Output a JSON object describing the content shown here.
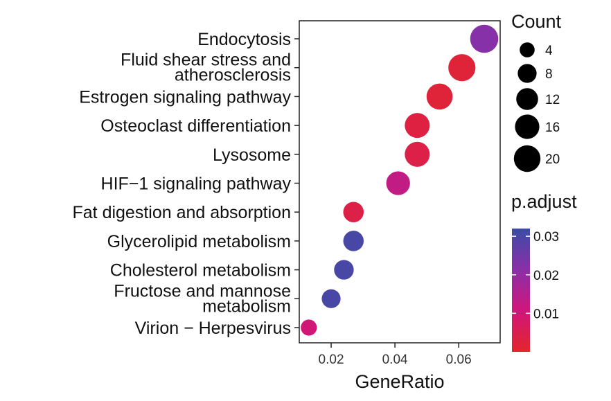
{
  "chart_data": {
    "type": "scatter",
    "xlabel": "GeneRatio",
    "xlim": [
      0.01,
      0.073
    ],
    "x_ticks": [
      "0.02",
      "0.04",
      "0.06"
    ],
    "x_tick_values": [
      0.02,
      0.04,
      0.06
    ],
    "categories": [
      [
        "Endocytosis"
      ],
      [
        "Fluid shear stress and",
        "atherosclerosis"
      ],
      [
        "Estrogen signaling pathway"
      ],
      [
        "Osteoclast differentiation"
      ],
      [
        "Lysosome"
      ],
      [
        "HIF−1 signaling pathway"
      ],
      [
        "Fat digestion and absorption"
      ],
      [
        "Glycerolipid metabolism"
      ],
      [
        "Cholesterol metabolism"
      ],
      [
        "Fructose and mannose",
        "metabolism"
      ],
      [
        "Virion − Herpesvirus"
      ]
    ],
    "points": [
      {
        "x": 0.068,
        "count": 23,
        "p_adjust": 0.022
      },
      {
        "x": 0.061,
        "count": 21,
        "p_adjust": 0.002
      },
      {
        "x": 0.054,
        "count": 19,
        "p_adjust": 0.002
      },
      {
        "x": 0.047,
        "count": 17,
        "p_adjust": 0.003
      },
      {
        "x": 0.047,
        "count": 17,
        "p_adjust": 0.004
      },
      {
        "x": 0.041,
        "count": 15,
        "p_adjust": 0.013
      },
      {
        "x": 0.027,
        "count": 10,
        "p_adjust": 0.004
      },
      {
        "x": 0.027,
        "count": 10,
        "p_adjust": 0.03
      },
      {
        "x": 0.024,
        "count": 9,
        "p_adjust": 0.03
      },
      {
        "x": 0.02,
        "count": 8,
        "p_adjust": 0.03
      },
      {
        "x": 0.013,
        "count": 5,
        "p_adjust": 0.01
      }
    ],
    "size_legend": {
      "title": "Count",
      "values": [
        4,
        8,
        12,
        16,
        20
      ],
      "labels": [
        "4",
        "8",
        "12",
        "16",
        "20"
      ]
    },
    "color_legend": {
      "title": "p.adjust",
      "range": [
        0.0,
        0.032
      ],
      "ticks": [
        0.03,
        0.02,
        0.01
      ],
      "labels": [
        "0.03",
        "0.02",
        "0.01"
      ],
      "colors": {
        "low": "#e3262a",
        "mid": "#d0167a",
        "mid2": "#8a2fa8",
        "high": "#3a4ca6"
      }
    },
    "grid": false,
    "legend_position": "right"
  }
}
